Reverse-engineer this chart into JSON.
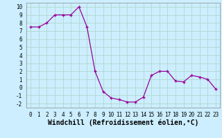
{
  "x": [
    0,
    1,
    2,
    3,
    4,
    5,
    6,
    7,
    8,
    9,
    10,
    11,
    12,
    13,
    14,
    15,
    16,
    17,
    18,
    19,
    20,
    21,
    22,
    23
  ],
  "y": [
    7.5,
    7.5,
    8.0,
    9.0,
    9.0,
    9.0,
    10.0,
    7.5,
    2.0,
    -0.5,
    -1.3,
    -1.5,
    -1.8,
    -1.8,
    -1.2,
    1.5,
    2.0,
    2.0,
    0.8,
    0.7,
    1.5,
    1.3,
    1.0,
    -0.2
  ],
  "line_color": "#990099",
  "marker": "+",
  "bg_color": "#cceeff",
  "grid_color": "#b0d8cc",
  "xlabel": "Windchill (Refroidissement éolien,°C)",
  "xlim": [
    -0.5,
    23.5
  ],
  "ylim": [
    -2.5,
    10.5
  ],
  "yticks": [
    -2,
    -1,
    0,
    1,
    2,
    3,
    4,
    5,
    6,
    7,
    8,
    9,
    10
  ],
  "xticks": [
    0,
    1,
    2,
    3,
    4,
    5,
    6,
    7,
    8,
    9,
    10,
    11,
    12,
    13,
    14,
    15,
    16,
    17,
    18,
    19,
    20,
    21,
    22,
    23
  ],
  "tick_label_size": 5.5,
  "xlabel_size": 7,
  "figsize": [
    3.2,
    2.0
  ],
  "dpi": 100
}
